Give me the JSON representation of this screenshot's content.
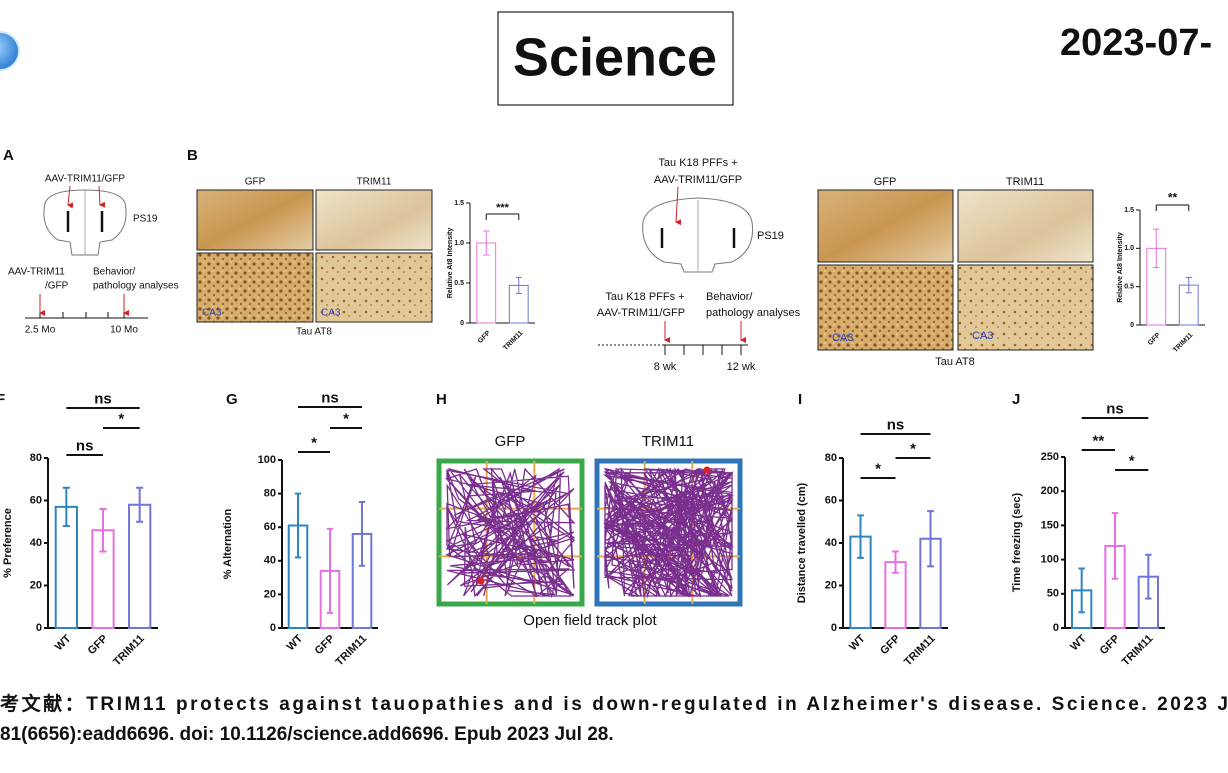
{
  "header": {
    "title": "Science",
    "date": "2023-07-"
  },
  "panel_a": {
    "label": "A",
    "injection": "AAV-TRIM11/GFP",
    "mouse": "PS19",
    "timeline_start": [
      "AAV-TRIM11",
      "/GFP"
    ],
    "timeline_end": [
      "Behavior/",
      "pathology analyses"
    ],
    "time_points": [
      "2.5 Mo",
      "10 Mo"
    ]
  },
  "panel_b": {
    "label": "B",
    "image_labels": [
      "GFP",
      "TRIM11"
    ],
    "region_labels": [
      "CA3",
      "CA3"
    ],
    "stain": "Tau AT8",
    "chart": {
      "type": "bar",
      "y_label": "Relative At8 Intensity",
      "categories": [
        "GFP",
        "TRIM11"
      ],
      "colors": [
        "#e86fe0",
        "#6f74d8"
      ],
      "values": [
        1.0,
        0.47
      ],
      "errors": [
        0.15,
        0.1
      ],
      "ylim": [
        0,
        1.5
      ],
      "yticks": [
        0,
        0.5,
        {
          "value": 1,
          "label": "1.0"
        },
        1.5
      ],
      "significance": [
        "***"
      ]
    }
  },
  "panel_c": {
    "injection": [
      "Tau K18 PFFs +",
      "AAV-TRIM11/GFP"
    ],
    "mouse": "PS19",
    "timeline_start": [
      "Tau K18 PFFs +",
      "AAV-TRIM11/GFP"
    ],
    "timeline_end": [
      "Behavior/",
      "pathology analyses"
    ],
    "time_points": [
      "8 wk",
      "12 wk"
    ],
    "image_labels": [
      "GFP",
      "TRIM11"
    ],
    "region_labels": [
      "CA3",
      "CA3"
    ],
    "stain": "Tau AT8",
    "chart": {
      "type": "bar",
      "y_label": "Relative At8 Intensity",
      "categories": [
        "GFP",
        "TRIM11"
      ],
      "colors": [
        "#e86fe0",
        "#6f74d8"
      ],
      "values": [
        1.0,
        0.52
      ],
      "errors": [
        0.25,
        0.1
      ],
      "ylim": [
        0,
        1.5
      ],
      "yticks": [
        0,
        0.5,
        {
          "value": 1,
          "label": "1.0"
        },
        1.5
      ],
      "significance": [
        "**"
      ]
    }
  },
  "charts": [
    {
      "type": "bar",
      "label": "F",
      "y_label": "% Preference",
      "categories": [
        "WT",
        "GFP",
        "TRIM11"
      ],
      "colors": [
        "#2e86c1",
        "#e86fe0",
        "#6f74d8"
      ],
      "values": [
        57,
        46,
        58
      ],
      "errors": [
        9,
        10,
        8
      ],
      "ylim": [
        0,
        80
      ],
      "yticks": [
        0,
        20,
        40,
        60,
        80
      ],
      "significance": [
        "ns",
        "ns",
        "*"
      ]
    },
    {
      "type": "bar",
      "label": "G",
      "y_label": "% Alternation",
      "categories": [
        "WT",
        "GFP",
        "TRIM11"
      ],
      "colors": [
        "#2e86c1",
        "#e86fe0",
        "#6f74d8"
      ],
      "values": [
        61,
        34,
        56
      ],
      "errors": [
        19,
        25,
        19
      ],
      "ylim": [
        0,
        100
      ],
      "yticks": [
        0,
        20,
        40,
        60,
        80,
        100
      ],
      "significance": [
        "ns",
        "*",
        "*"
      ]
    },
    {
      "type": "bar",
      "label": "I",
      "y_label": "Distance travelled (cm)",
      "categories": [
        "WT",
        "GFP",
        "TRIM11"
      ],
      "colors": [
        "#2e86c1",
        "#e86fe0",
        "#6f74d8"
      ],
      "values": [
        43,
        31,
        42
      ],
      "errors": [
        10,
        5,
        13
      ],
      "ylim": [
        0,
        80
      ],
      "yticks": [
        0,
        20,
        40,
        60,
        80
      ],
      "significance": [
        "ns",
        "*",
        "*"
      ]
    },
    {
      "type": "bar",
      "label": "J",
      "y_label": "Time freezing (sec)",
      "categories": [
        "WT",
        "GFP",
        "TRIM11"
      ],
      "colors": [
        "#2e86c1",
        "#e86fe0",
        "#6f74d8"
      ],
      "values": [
        55,
        120,
        75
      ],
      "errors": [
        32,
        48,
        32
      ],
      "ylim": [
        0,
        250
      ],
      "yticks": [
        0,
        50,
        100,
        150,
        200,
        250
      ],
      "significance": [
        "ns",
        "**",
        "*"
      ]
    }
  ],
  "panel_h": {
    "label": "H",
    "groups": [
      "GFP",
      "TRIM11"
    ],
    "caption": "Open field track plot"
  },
  "reference": {
    "lines": [
      "考文献：TRIM11 protects against tauopathies and is down-regulated in Alzheimer's disease. Science. 2023 J",
      "81(6656):eadd6696. doi: 10.1126/science.add6696. Epub 2023 Jul 28."
    ]
  }
}
